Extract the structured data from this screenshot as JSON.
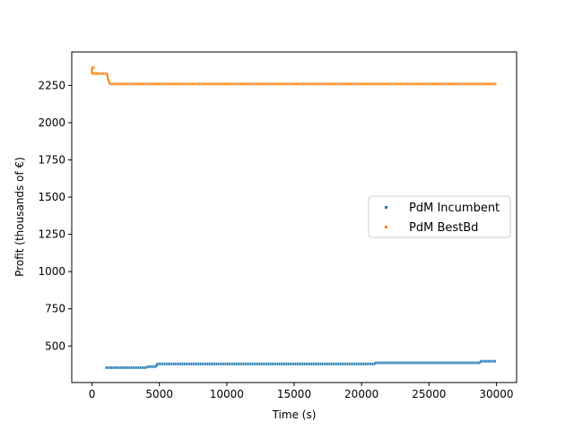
{
  "chart_data": {
    "type": "scatter",
    "title": "",
    "xlabel": "Time (s)",
    "ylabel": "Profit (thousands of €)",
    "xlim": [
      -1500,
      31500
    ],
    "ylim": [
      255,
      2475
    ],
    "xticks": [
      0,
      5000,
      10000,
      15000,
      20000,
      25000,
      30000
    ],
    "yticks": [
      500,
      750,
      1000,
      1250,
      1500,
      1750,
      2000,
      2250
    ],
    "grid": false,
    "legend_position": "center-right",
    "series": [
      {
        "name": "PdM Incumbent",
        "color": "#1f77b4",
        "steps": [
          {
            "x_start": 1000,
            "x_end": 4100,
            "y": 355
          },
          {
            "x_start": 4100,
            "x_end": 4800,
            "y": 362
          },
          {
            "x_start": 4800,
            "x_end": 21000,
            "y": 380
          },
          {
            "x_start": 21000,
            "x_end": 28800,
            "y": 387
          },
          {
            "x_start": 28800,
            "x_end": 30000,
            "y": 398
          }
        ]
      },
      {
        "name": "PdM BestBd",
        "color": "#ff7f0e",
        "steps": [
          {
            "x_start": 0,
            "x_end": 200,
            "y": 2370
          },
          {
            "x_start": 0,
            "x_end": 1150,
            "y": 2330
          },
          {
            "x_start": 1150,
            "x_end": 1200,
            "y": 2300
          },
          {
            "x_start": 1200,
            "x_end": 1300,
            "y": 2280
          },
          {
            "x_start": 1300,
            "x_end": 30000,
            "y": 2260
          }
        ]
      }
    ]
  }
}
